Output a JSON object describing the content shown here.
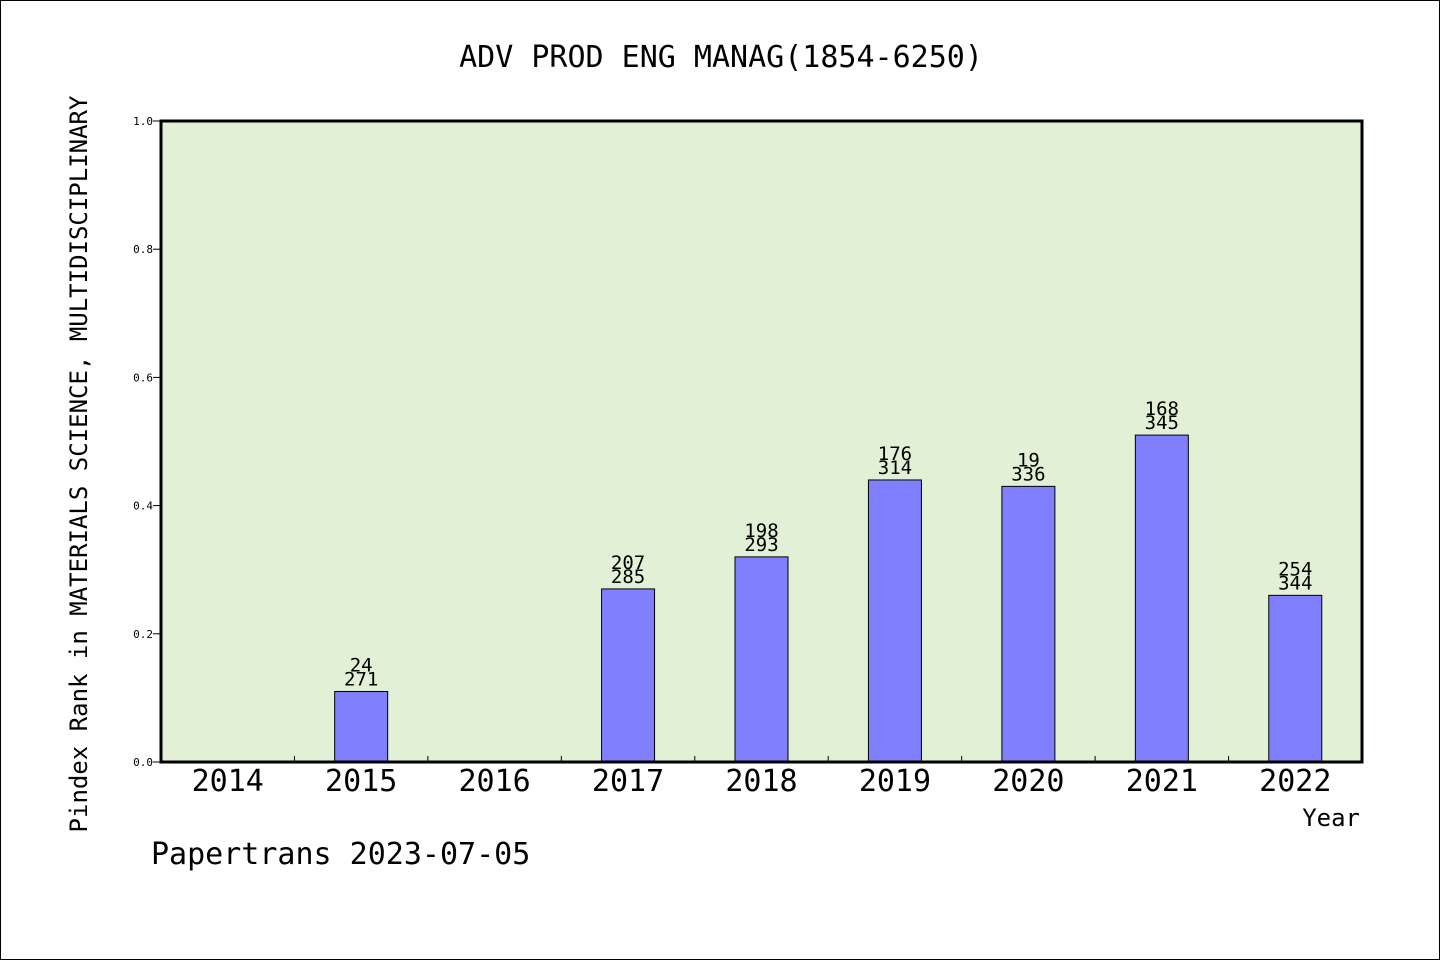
{
  "chart_data": {
    "type": "bar",
    "title": "ADV PROD ENG MANAG(1854-6250)",
    "xlabel": "Year",
    "ylabel": "Pindex Rank in MATERIALS SCIENCE, MULTIDISCIPLINARY",
    "ylim": [
      0,
      1.0
    ],
    "yticks": [
      "0.0",
      "0.2",
      "0.4",
      "0.6",
      "0.8",
      "1.0"
    ],
    "categories": [
      "2014",
      "2015",
      "2016",
      "2017",
      "2018",
      "2019",
      "2020",
      "2021",
      "2022"
    ],
    "values": [
      null,
      0.11,
      null,
      0.27,
      0.32,
      0.44,
      0.43,
      0.51,
      0.26
    ],
    "label_top": [
      "",
      "24",
      "",
      "207",
      "198",
      "176",
      "19",
      "168",
      "254"
    ],
    "label_bottom": [
      "",
      "271",
      "",
      "285",
      "293",
      "314",
      "336",
      "345",
      "344"
    ],
    "bar_color": "#8080ff",
    "plot_background": "#e2f0d6",
    "grid": false,
    "legend": "none"
  },
  "footer": "Papertrans 2023-07-05"
}
